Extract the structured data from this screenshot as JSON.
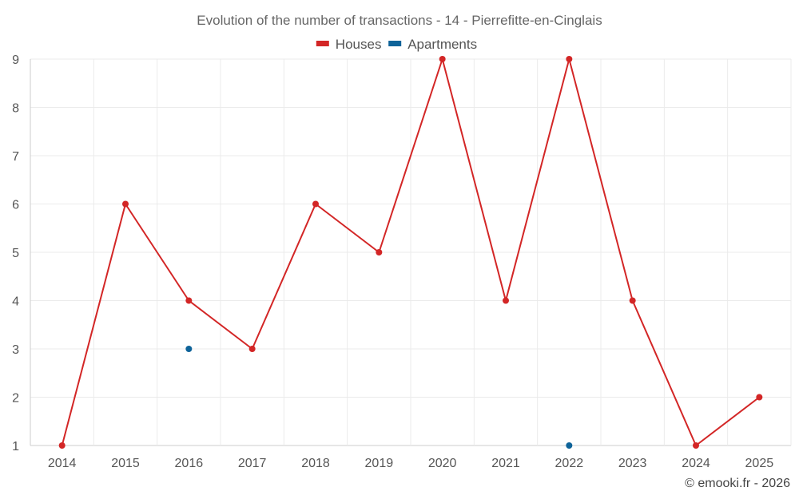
{
  "chart_data": {
    "type": "line",
    "title": "Evolution of the number of transactions - 14 - Pierrefitte-en-Cinglais",
    "categories": [
      "2014",
      "2015",
      "2016",
      "2017",
      "2018",
      "2019",
      "2020",
      "2021",
      "2022",
      "2023",
      "2024",
      "2025"
    ],
    "ylim": [
      1,
      9
    ],
    "yticks": [
      1,
      2,
      3,
      4,
      5,
      6,
      7,
      8,
      9
    ],
    "grid": true,
    "legend_position": "top-center",
    "series": [
      {
        "name": "Houses",
        "color": "#d32626",
        "values": [
          1,
          6,
          4,
          3,
          6,
          5,
          9,
          4,
          9,
          4,
          1,
          2
        ]
      },
      {
        "name": "Apartments",
        "color": "#0e6399",
        "values": [
          null,
          null,
          3,
          null,
          null,
          null,
          null,
          null,
          1,
          null,
          null,
          null
        ]
      }
    ],
    "credit": "© emooki.fr - 2026"
  }
}
